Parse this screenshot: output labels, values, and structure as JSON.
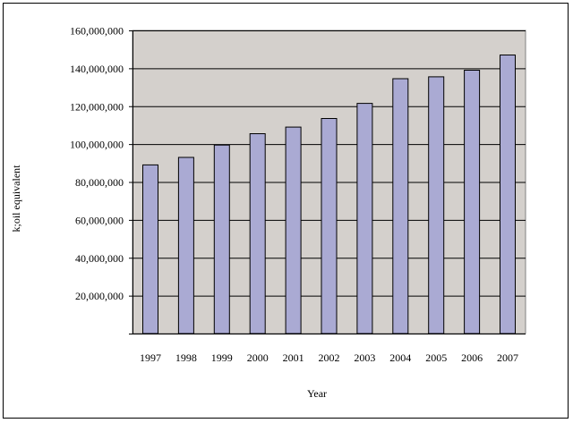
{
  "chart_data": {
    "type": "bar",
    "title": "",
    "xlabel": "Year",
    "ylabel": "k;oil equivalent",
    "categories": [
      "1997",
      "1998",
      "1999",
      "2000",
      "2001",
      "2002",
      "2003",
      "2004",
      "2005",
      "2006",
      "2007"
    ],
    "values": [
      89000000,
      93000000,
      99500000,
      105500000,
      109000000,
      113500000,
      121500000,
      134500000,
      135500000,
      139000000,
      147000000
    ],
    "ylim": [
      0,
      160000000
    ],
    "yticks": [
      0,
      20000000,
      40000000,
      60000000,
      80000000,
      100000000,
      120000000,
      140000000,
      160000000
    ],
    "ytick_labels": [
      "",
      "20,000,000",
      "40,000,000",
      "60,000,000",
      "80,000,000",
      "100,000,000",
      "120,000,000",
      "140,000,000",
      "160,000,000"
    ],
    "grid": true,
    "legend": "none",
    "colors": {
      "bar_fill": "#aaaad3",
      "bar_stroke": "#000000",
      "plot_background": "#d4d0cc",
      "gridline": "#000000"
    }
  }
}
